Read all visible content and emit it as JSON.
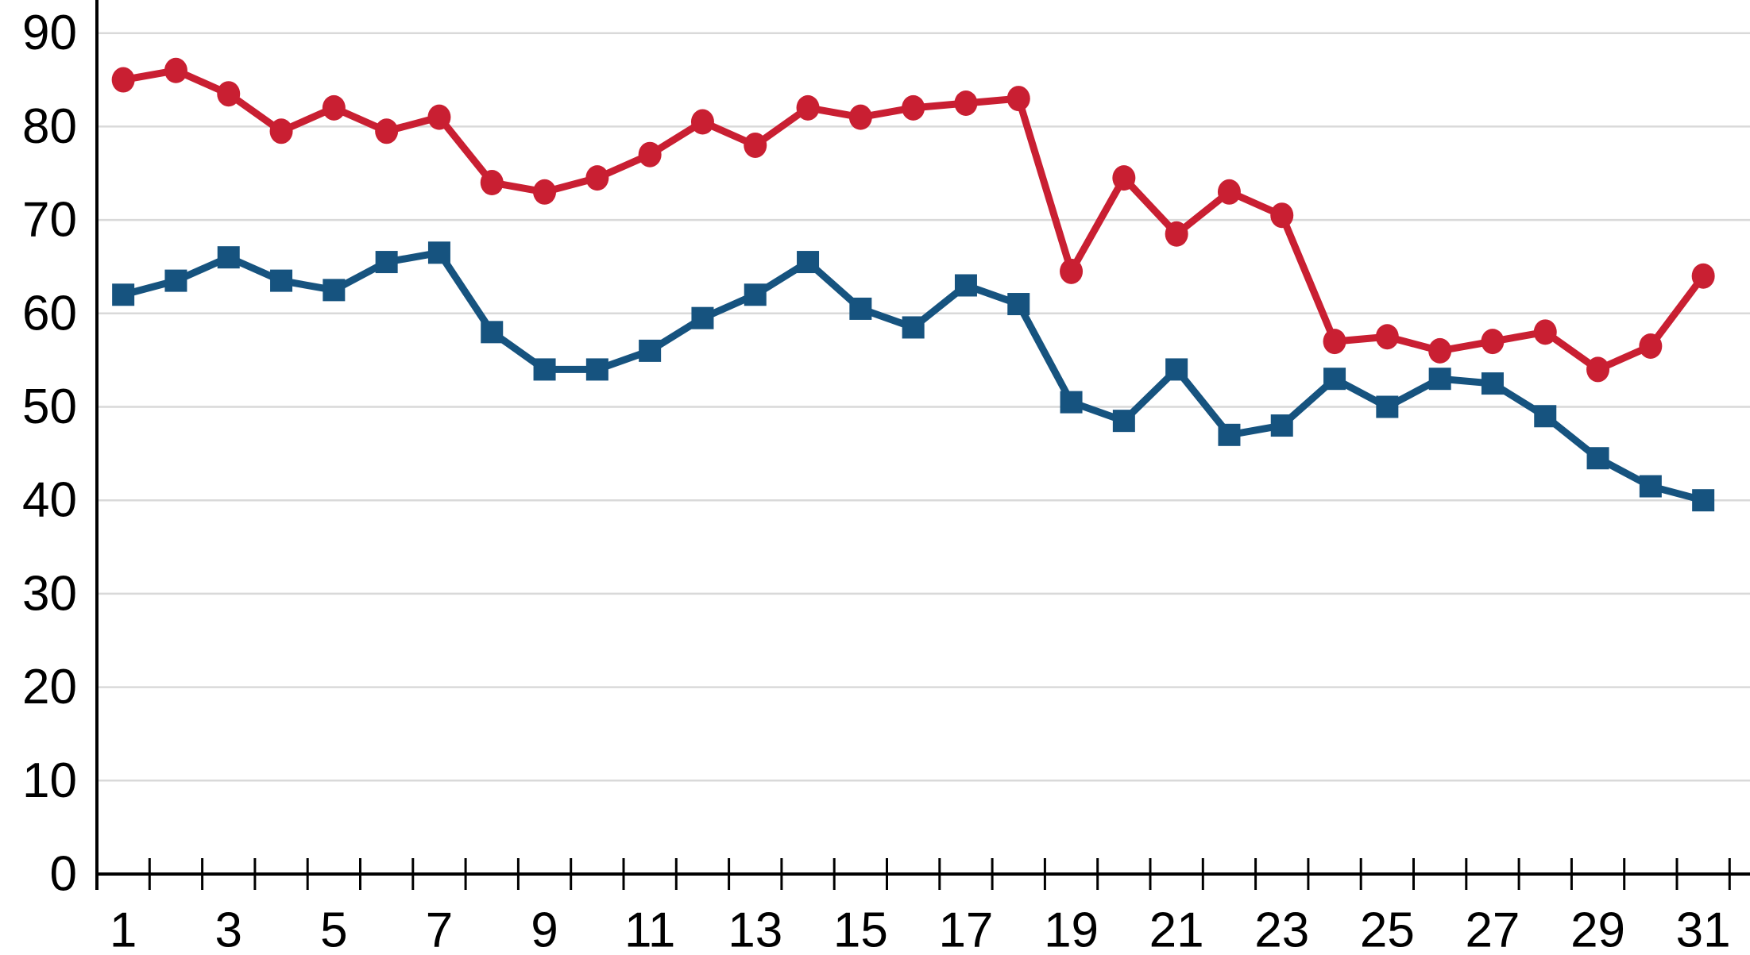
{
  "chart_data": {
    "type": "line",
    "title": "",
    "xlabel": "",
    "ylabel": "",
    "x": [
      1,
      2,
      3,
      4,
      5,
      6,
      7,
      8,
      9,
      10,
      11,
      12,
      13,
      14,
      15,
      16,
      17,
      18,
      19,
      20,
      21,
      22,
      23,
      24,
      25,
      26,
      27,
      28,
      29,
      30,
      31
    ],
    "series": [
      {
        "name": "red-series",
        "marker": "circle",
        "color": "#C91F32",
        "values": [
          85,
          86,
          83.5,
          79.5,
          82,
          79.5,
          81,
          74,
          73,
          74.5,
          77,
          80.5,
          78,
          82,
          81,
          82,
          82.5,
          83,
          64.5,
          74.5,
          68.5,
          73,
          70.5,
          57,
          57.5,
          56,
          57,
          58,
          54,
          56.5,
          64
        ]
      },
      {
        "name": "blue-series",
        "marker": "square",
        "color": "#16537F",
        "values": [
          62,
          63.5,
          66,
          63.5,
          62.5,
          65.5,
          66.5,
          58,
          54,
          54,
          56,
          59.5,
          62,
          65.5,
          60.5,
          58.5,
          63,
          61,
          50.5,
          48.5,
          54,
          47,
          48,
          53,
          50,
          53,
          52.5,
          49,
          44.5,
          41.5,
          40
        ]
      }
    ],
    "ylim": [
      0,
      90
    ],
    "yticks": [
      0,
      10,
      20,
      30,
      40,
      50,
      60,
      70,
      80,
      90
    ],
    "ytick_labels": [
      "0",
      "10",
      "20",
      "30",
      "40",
      "50",
      "60",
      "70",
      "80",
      "90"
    ],
    "xtick_labels": [
      "1",
      "3",
      "5",
      "7",
      "9",
      "11",
      "13",
      "15",
      "17",
      "19",
      "21",
      "23",
      "25",
      "27",
      "29",
      "31"
    ],
    "xtick_label_days": [
      1,
      3,
      5,
      7,
      9,
      11,
      13,
      15,
      17,
      19,
      21,
      23,
      25,
      27,
      29,
      31
    ],
    "grid": true,
    "legend": "none",
    "gridline_color": "#D9D9D9",
    "axis_color": "#000000",
    "label_color": "#000000",
    "background_color": "#FFFFFF"
  }
}
